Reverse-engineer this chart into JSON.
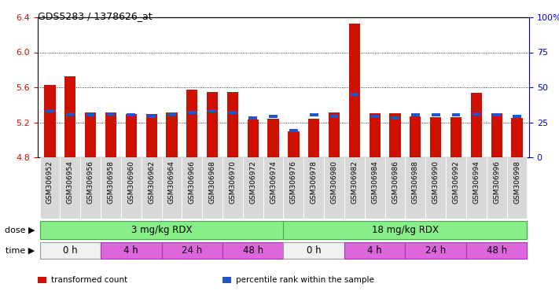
{
  "title": "GDS5283 / 1378626_at",
  "samples": [
    "GSM306952",
    "GSM306954",
    "GSM306956",
    "GSM306958",
    "GSM306960",
    "GSM306962",
    "GSM306964",
    "GSM306966",
    "GSM306968",
    "GSM306970",
    "GSM306972",
    "GSM306974",
    "GSM306976",
    "GSM306978",
    "GSM306980",
    "GSM306982",
    "GSM306984",
    "GSM306986",
    "GSM306988",
    "GSM306990",
    "GSM306992",
    "GSM306994",
    "GSM306996",
    "GSM306998"
  ],
  "red_values": [
    5.63,
    5.73,
    5.31,
    5.31,
    5.29,
    5.29,
    5.31,
    5.57,
    5.55,
    5.55,
    5.23,
    5.24,
    5.1,
    5.24,
    5.31,
    6.33,
    5.3,
    5.3,
    5.27,
    5.26,
    5.26,
    5.54,
    5.3,
    5.25
  ],
  "blue_values_pct": [
    32,
    30,
    29,
    30,
    29,
    28,
    30,
    31,
    32,
    31,
    27,
    28,
    18,
    29,
    28,
    44,
    28,
    27,
    29,
    29,
    29,
    30,
    29,
    28
  ],
  "ymin": 4.8,
  "ymax": 6.4,
  "yticks": [
    4.8,
    5.2,
    5.6,
    6.0,
    6.4
  ],
  "right_ytick_labels": [
    "0",
    "25",
    "50",
    "75",
    "100%"
  ],
  "right_ytick_vals": [
    0,
    25,
    50,
    75,
    100
  ],
  "bar_color": "#cc1100",
  "blue_color": "#2255cc",
  "dose_labels": [
    "3 mg/kg RDX",
    "18 mg/kg RDX"
  ],
  "dose_color": "#88ee88",
  "dose_border": "#44bb44",
  "time_color_0h": "#f0f0f0",
  "time_color_other": "#dd66dd",
  "time_border": "#aa44aa",
  "time_labels": [
    "0 h",
    "4 h",
    "24 h",
    "48 h",
    "0 h",
    "4 h",
    "24 h",
    "48 h"
  ],
  "time_spans_start": [
    0,
    3,
    6,
    9,
    12,
    15,
    18,
    21
  ],
  "time_spans_end": [
    2,
    5,
    8,
    11,
    14,
    17,
    20,
    23
  ],
  "legend_items": [
    {
      "label": "transformed count",
      "color": "#cc1100"
    },
    {
      "label": "percentile rank within the sample",
      "color": "#2255cc"
    }
  ],
  "bar_width": 0.55,
  "axis_color_left": "#cc1100",
  "axis_color_right": "#0000cc",
  "plot_bg": "#f5f5f5",
  "xlabels_bg": "#e0e0e0"
}
